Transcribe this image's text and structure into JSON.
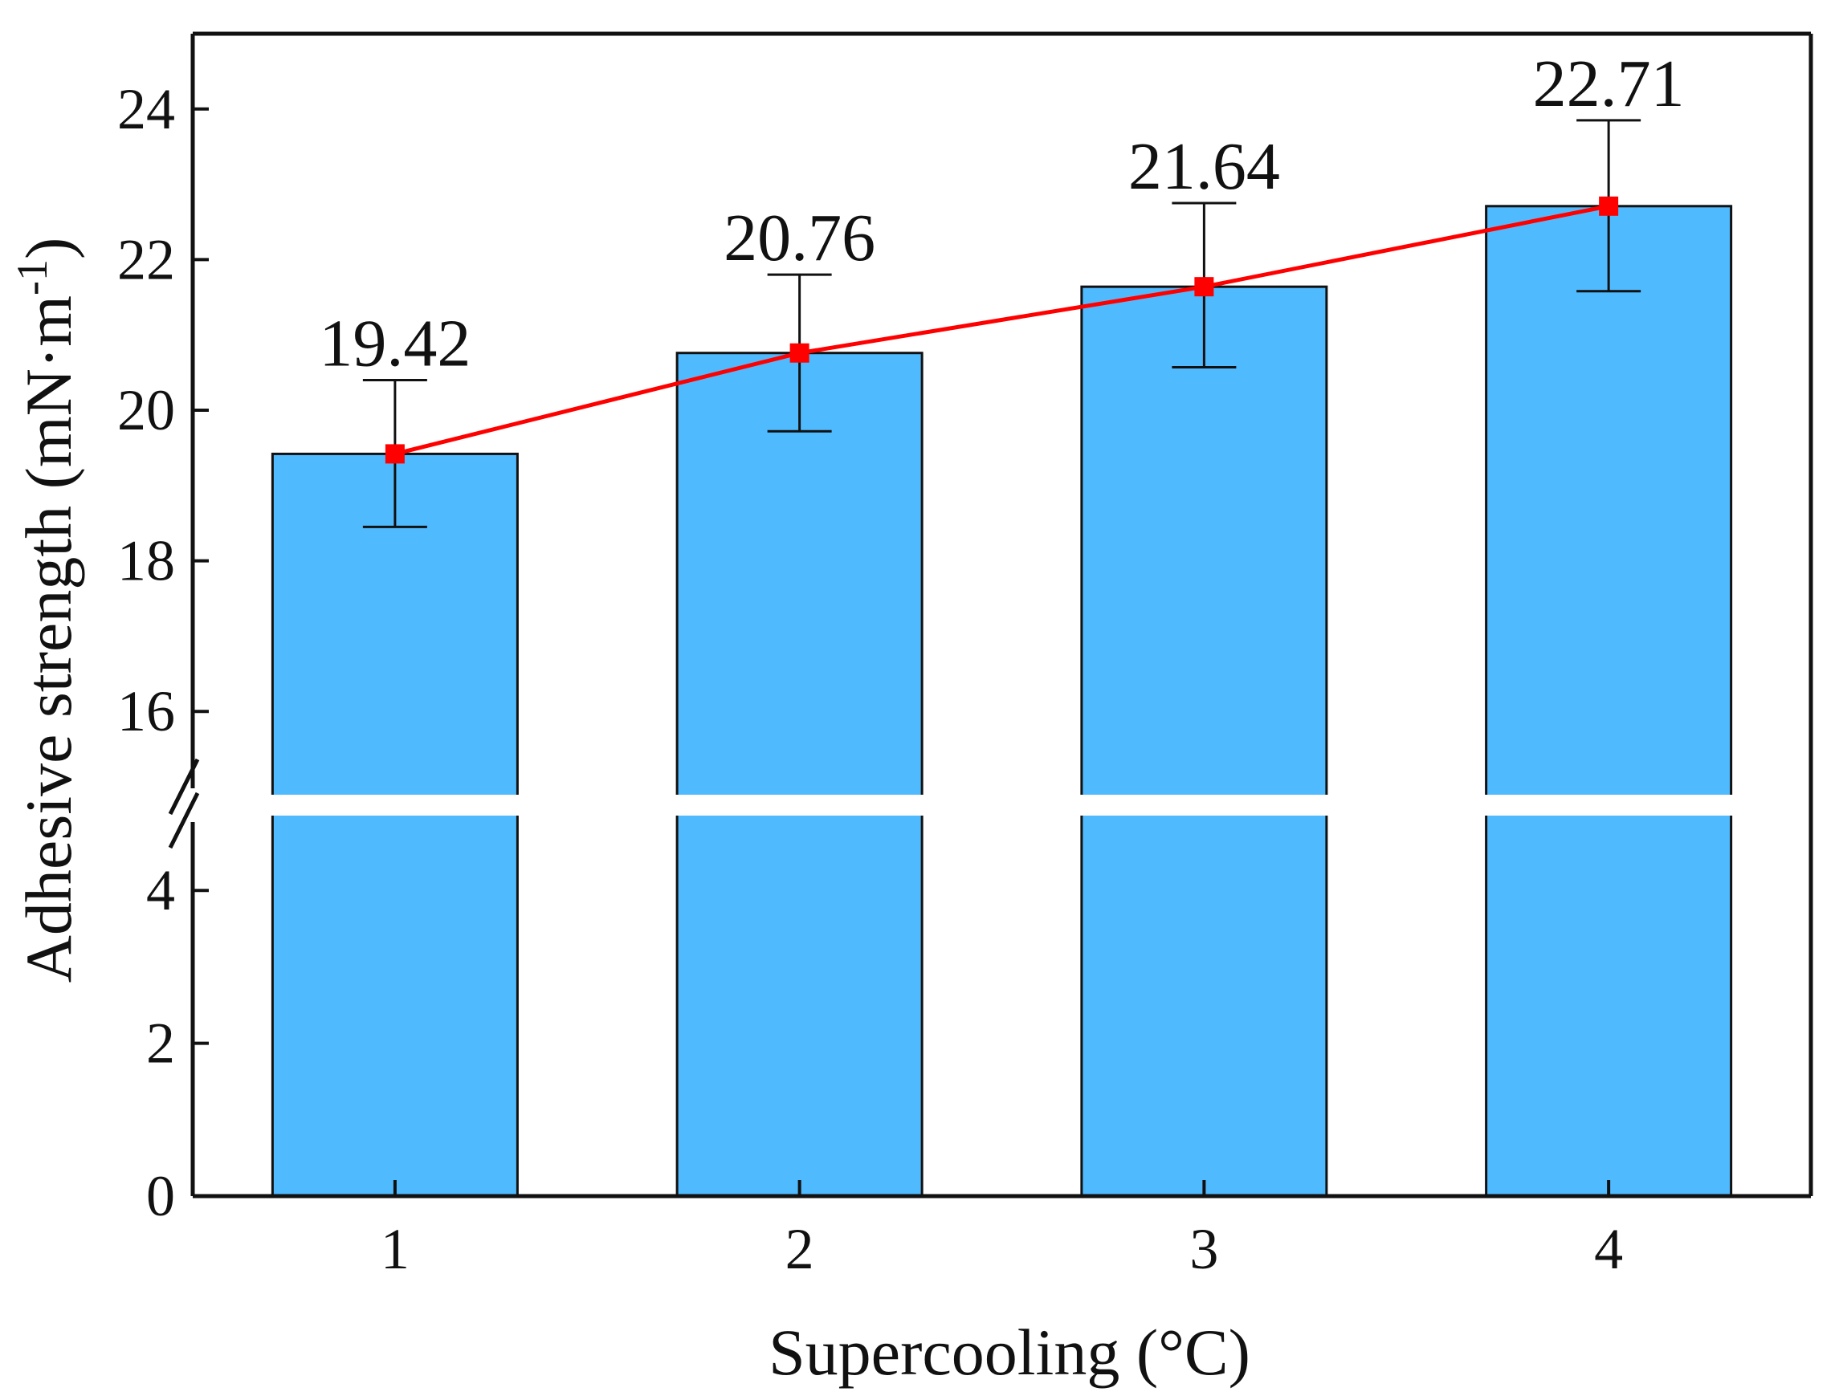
{
  "chart_data": {
    "type": "bar",
    "xlabel": "Supercooling (°C)",
    "ylabel_main": "Adhesive strength (mN·m",
    "ylabel_sup": "-1",
    "ylabel_close": ")",
    "categories": [
      "1",
      "2",
      "3",
      "4"
    ],
    "values": [
      19.42,
      20.76,
      21.64,
      22.71
    ],
    "data_labels": [
      "19.42",
      "20.76",
      "21.64",
      "22.71"
    ],
    "error_upper": [
      20.4,
      21.8,
      22.75,
      23.85
    ],
    "error_lower": [
      18.45,
      19.72,
      20.57,
      21.58
    ],
    "axis_break": {
      "lower_segment_max": 5,
      "upper_segment_min": 15
    },
    "ylim": [
      0,
      25
    ],
    "yticks_lower": [
      0,
      2,
      4
    ],
    "yticks_upper": [
      16,
      18,
      20,
      22,
      24
    ],
    "ytick_labels_lower": [
      "0",
      "2",
      "4"
    ],
    "ytick_labels_upper": [
      "16",
      "18",
      "20",
      "22",
      "24"
    ],
    "line_overlay": true,
    "colors": {
      "bar": "#50BAFF",
      "line": "#FF0000",
      "marker": "#FF0000",
      "axis": "#111111"
    }
  }
}
